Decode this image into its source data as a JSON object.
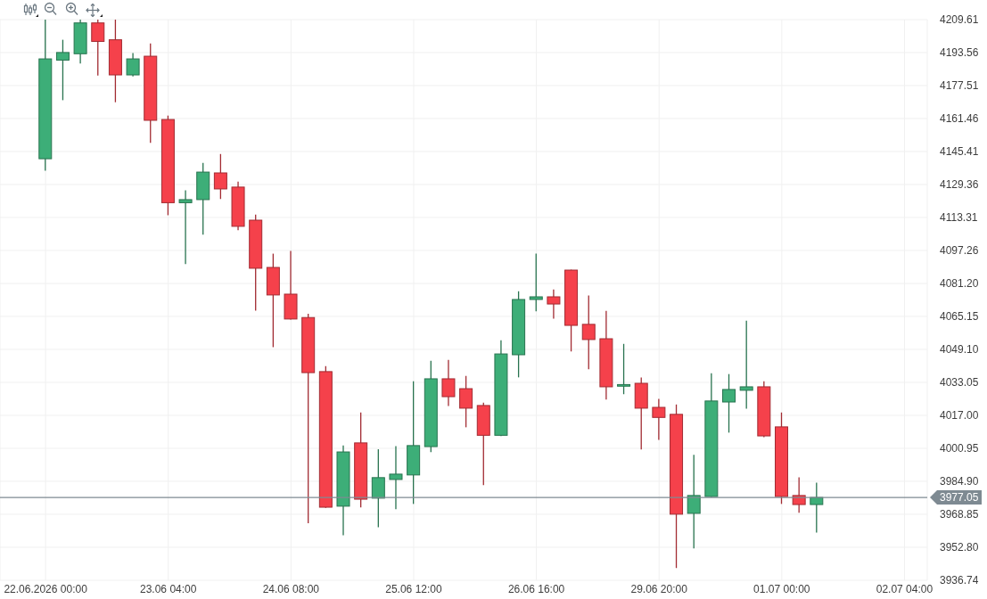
{
  "chart_data": {
    "type": "candlestick",
    "categories": [
      "22.06.2026 00:00",
      null,
      null,
      null,
      null,
      null,
      null,
      "23.06 04:00",
      null,
      null,
      null,
      null,
      null,
      null,
      "24.06 08:00",
      null,
      null,
      null,
      null,
      null,
      null,
      "25.06 12:00",
      null,
      null,
      null,
      null,
      null,
      null,
      "26.06 16:00",
      null,
      null,
      null,
      null,
      null,
      null,
      "29.06 20:00",
      null,
      null,
      null,
      null,
      null,
      null,
      "01.07 00:00",
      null,
      null,
      null,
      null,
      null,
      null,
      "02.07 04:00"
    ],
    "ohlc": [
      [
        4141.9,
        4209.6,
        4136.1,
        4190.5
      ],
      [
        4189.9,
        4199.8,
        4170.4,
        4193.6
      ],
      [
        4193.0,
        4209.6,
        4188.2,
        4208.0
      ],
      [
        4208.0,
        4209.6,
        4182.4,
        4199.0
      ],
      [
        4199.8,
        4209.6,
        4169.4,
        4182.7
      ],
      [
        4182.7,
        4193.3,
        4182.0,
        4190.5
      ],
      [
        4191.8,
        4198.0,
        4149.6,
        4160.6
      ],
      [
        4161.0,
        4162.9,
        4114.4,
        4120.5
      ],
      [
        4120.5,
        4126.5,
        4090.6,
        4122.0
      ],
      [
        4122.0,
        4139.9,
        4104.9,
        4135.4
      ],
      [
        4135.0,
        4144.2,
        4122.3,
        4127.2
      ],
      [
        4128.1,
        4130.8,
        4107.1,
        4109.0
      ],
      [
        4112.0,
        4114.7,
        4068.0,
        4088.6
      ],
      [
        4089.0,
        4095.7,
        4050.2,
        4075.6
      ],
      [
        4076.0,
        4097.0,
        4063.6,
        4063.9
      ],
      [
        4064.6,
        4066.5,
        3964.5,
        4037.8
      ],
      [
        4038.3,
        4041.0,
        3972.0,
        3972.3
      ],
      [
        3972.8,
        4002.4,
        3958.7,
        3999.2
      ],
      [
        4003.6,
        4018.4,
        3972.2,
        3976.2
      ],
      [
        3976.7,
        4000.5,
        3962.6,
        3986.7
      ],
      [
        3985.8,
        4002.0,
        3971.3,
        3988.4
      ],
      [
        3988.0,
        4033.6,
        3973.9,
        4002.3
      ],
      [
        4001.8,
        4043.6,
        3999.1,
        4034.8
      ],
      [
        4034.8,
        4044.0,
        4021.6,
        4026.1
      ],
      [
        4030.0,
        4036.2,
        4011.2,
        4020.5
      ],
      [
        4021.8,
        4023.2,
        3983.0,
        4007.3
      ],
      [
        4007.3,
        4053.5,
        4006.9,
        4046.9
      ],
      [
        4046.5,
        4077.4,
        4035.5,
        4073.4
      ],
      [
        4073.4,
        4095.7,
        4067.6,
        4074.7
      ],
      [
        4074.7,
        4078.3,
        4064.1,
        4071.2
      ],
      [
        4087.7,
        4087.9,
        4048.1,
        4060.8
      ],
      [
        4061.3,
        4075.3,
        4039.4,
        4053.9
      ],
      [
        4054.3,
        4067.9,
        4024.7,
        4030.9
      ],
      [
        4031.2,
        4051.8,
        4027.3,
        4032.0
      ],
      [
        4032.6,
        4035.4,
        4000.4,
        4020.5
      ],
      [
        4020.9,
        4025.0,
        4005.1,
        4016.0
      ],
      [
        4017.5,
        4022.3,
        3942.7,
        3968.9
      ],
      [
        3969.3,
        3997.8,
        3952.2,
        3978.0
      ],
      [
        3977.5,
        4037.5,
        3977.3,
        4024.0
      ],
      [
        4023.5,
        4037.1,
        4008.6,
        4029.6
      ],
      [
        4029.2,
        4063.1,
        4020.3,
        4030.9
      ],
      [
        4030.9,
        4033.6,
        4006.4,
        4007.0
      ],
      [
        4011.4,
        4018.4,
        3973.9,
        3977.5
      ],
      [
        3978.0,
        3986.8,
        3969.6,
        3973.6
      ],
      [
        3973.6,
        3984.2,
        3960.0,
        3977.05
      ],
      null,
      null,
      null,
      null,
      null
    ],
    "colors": [
      "#3dae78",
      "#3dae78",
      "#3dae78",
      "#f5414b",
      "#f5414b",
      "#3dae78",
      "#f5414b",
      "#f5414b",
      "#3dae78",
      "#3dae78",
      "#f5414b",
      "#f5414b",
      "#f5414b",
      "#f5414b",
      "#f5414b",
      "#f5414b",
      "#f5414b",
      "#3dae78",
      "#f5414b",
      "#3dae78",
      "#3dae78",
      "#3dae78",
      "#3dae78",
      "#f5414b",
      "#f5414b",
      "#f5414b",
      "#3dae78",
      "#3dae78",
      "#3dae78",
      "#f5414b",
      "#f5414b",
      "#f5414b",
      "#f5414b",
      "#3dae78",
      "#f5414b",
      "#f5414b",
      "#f5414b",
      "#3dae78",
      "#3dae78",
      "#3dae78",
      "#3dae78",
      "#f5414b",
      "#f5414b",
      "#f5414b",
      "#3dae78",
      null,
      null,
      null,
      null,
      null
    ],
    "ylim": [
      3936.74,
      4209.61
    ],
    "yticks": [
      3936.74,
      {
        "value": 3952.8,
        "label": "3952.80"
      },
      3968.85,
      {
        "value": 3984.9,
        "label": "3984.90"
      },
      4000.95,
      {
        "value": 4017,
        "label": "4017.00"
      },
      4033.05,
      {
        "value": 4049.1,
        "label": "4049.10"
      },
      4065.15,
      {
        "value": 4081.2,
        "label": "4081.20"
      },
      4097.26,
      4113.31,
      4129.36,
      4145.41,
      4161.46,
      4177.51,
      4193.56,
      4209.61
    ],
    "grid": true,
    "ref_lines": [
      {
        "axis": "y",
        "value": 3977.05,
        "label": "3977.05",
        "color": "#7e8a92",
        "line_style": "solid"
      }
    ]
  }
}
